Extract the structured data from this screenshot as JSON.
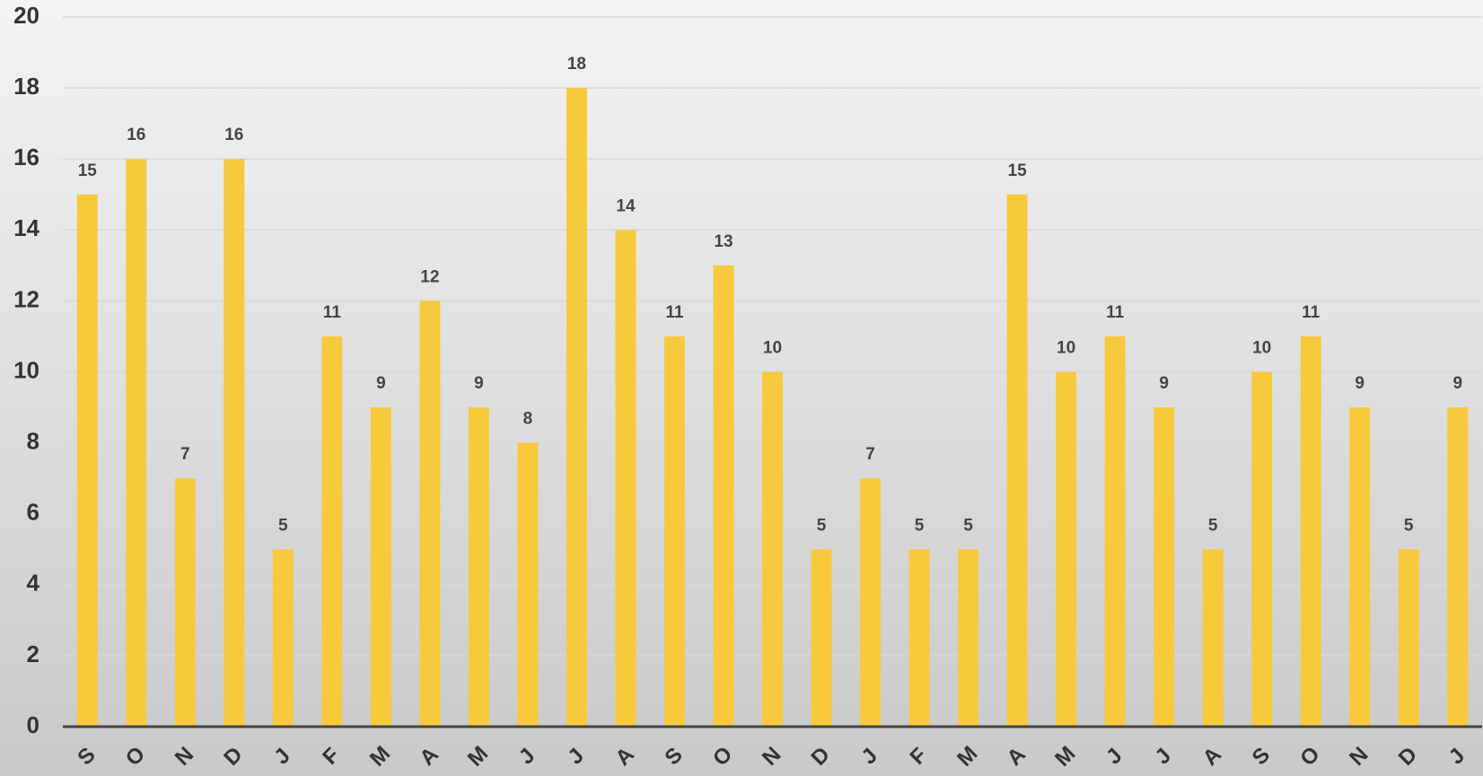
{
  "chart_data": {
    "type": "bar",
    "categories": [
      "S",
      "O",
      "N",
      "D",
      "J",
      "F",
      "M",
      "A",
      "M",
      "J",
      "J",
      "A",
      "S",
      "O",
      "N",
      "D",
      "J",
      "F",
      "M",
      "A",
      "M",
      "J",
      "J",
      "A",
      "S",
      "O",
      "N",
      "D",
      "J"
    ],
    "values": [
      15,
      16,
      7,
      16,
      5,
      11,
      9,
      12,
      9,
      8,
      18,
      14,
      11,
      13,
      10,
      5,
      7,
      5,
      5,
      15,
      10,
      11,
      9,
      5,
      10,
      11,
      9,
      5,
      9
    ],
    "color": "#f8c93c",
    "ylim": [
      0,
      20
    ],
    "yticks": [
      0,
      2,
      4,
      6,
      8,
      10,
      12,
      14,
      16,
      18,
      20
    ],
    "grid": true
  }
}
